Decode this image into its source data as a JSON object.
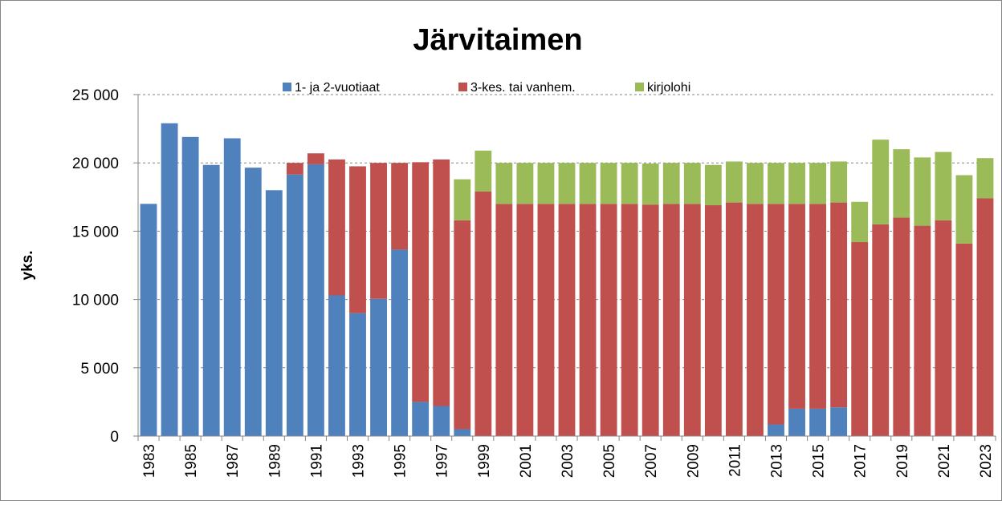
{
  "chart_data": {
    "type": "bar",
    "stacked": true,
    "title": "Järvitaimen",
    "ylabel": "yks.",
    "categories": [
      "1983",
      null,
      "1985",
      null,
      "1987",
      null,
      "1989",
      null,
      "1991",
      null,
      "1993",
      null,
      "1995",
      null,
      "1997",
      null,
      "1999",
      null,
      "2001",
      null,
      "2003",
      null,
      "2005",
      null,
      "2007",
      null,
      "2009",
      null,
      "2011",
      null,
      "2013",
      null,
      "2015",
      null,
      "2017",
      null,
      "2019",
      null,
      "2021",
      null,
      "2023"
    ],
    "series": [
      {
        "name": "1- ja 2-vuotiaat",
        "color": "#4f81bd",
        "values": [
          17000,
          22900,
          21900,
          19850,
          21800,
          19650,
          18000,
          19150,
          19900,
          10300,
          9000,
          10050,
          13650,
          2500,
          2200,
          500,
          null,
          null,
          null,
          null,
          null,
          null,
          null,
          null,
          null,
          null,
          null,
          null,
          null,
          null,
          850,
          2000,
          2000,
          2100,
          null,
          null,
          null,
          null,
          null,
          null,
          null
        ]
      },
      {
        "name": "3-kes. tai vanhem.",
        "color": "#c0504d",
        "values": [
          null,
          null,
          null,
          null,
          null,
          null,
          null,
          850,
          800,
          9950,
          10750,
          9950,
          6350,
          17550,
          18050,
          15300,
          17900,
          17000,
          17000,
          17000,
          17000,
          17000,
          17000,
          17000,
          16950,
          17000,
          17000,
          16900,
          17100,
          17000,
          16150,
          15000,
          15000,
          15000,
          14200,
          15500,
          16000,
          15400,
          15800,
          14100,
          17400
        ]
      },
      {
        "name": "kirjolohi",
        "color": "#9bbb59",
        "values": [
          null,
          null,
          null,
          null,
          null,
          null,
          null,
          null,
          null,
          null,
          null,
          null,
          null,
          null,
          null,
          3000,
          3000,
          3000,
          3000,
          3000,
          3000,
          3000,
          3000,
          3000,
          3000,
          3000,
          3000,
          2950,
          3000,
          3000,
          3000,
          3000,
          3000,
          3000,
          2950,
          6200,
          5000,
          5000,
          5000,
          5000,
          2950
        ]
      }
    ],
    "ylim": [
      0,
      25000
    ],
    "yticks": [
      {
        "value": 0,
        "label": "0"
      },
      {
        "value": 5000,
        "label": "5 000"
      },
      {
        "value": 10000,
        "label": "10 000"
      },
      {
        "value": 15000,
        "label": "15 000"
      },
      {
        "value": 20000,
        "label": "20 000"
      },
      {
        "value": 25000,
        "label": "25 000"
      }
    ],
    "grid": true,
    "legend": "top"
  }
}
